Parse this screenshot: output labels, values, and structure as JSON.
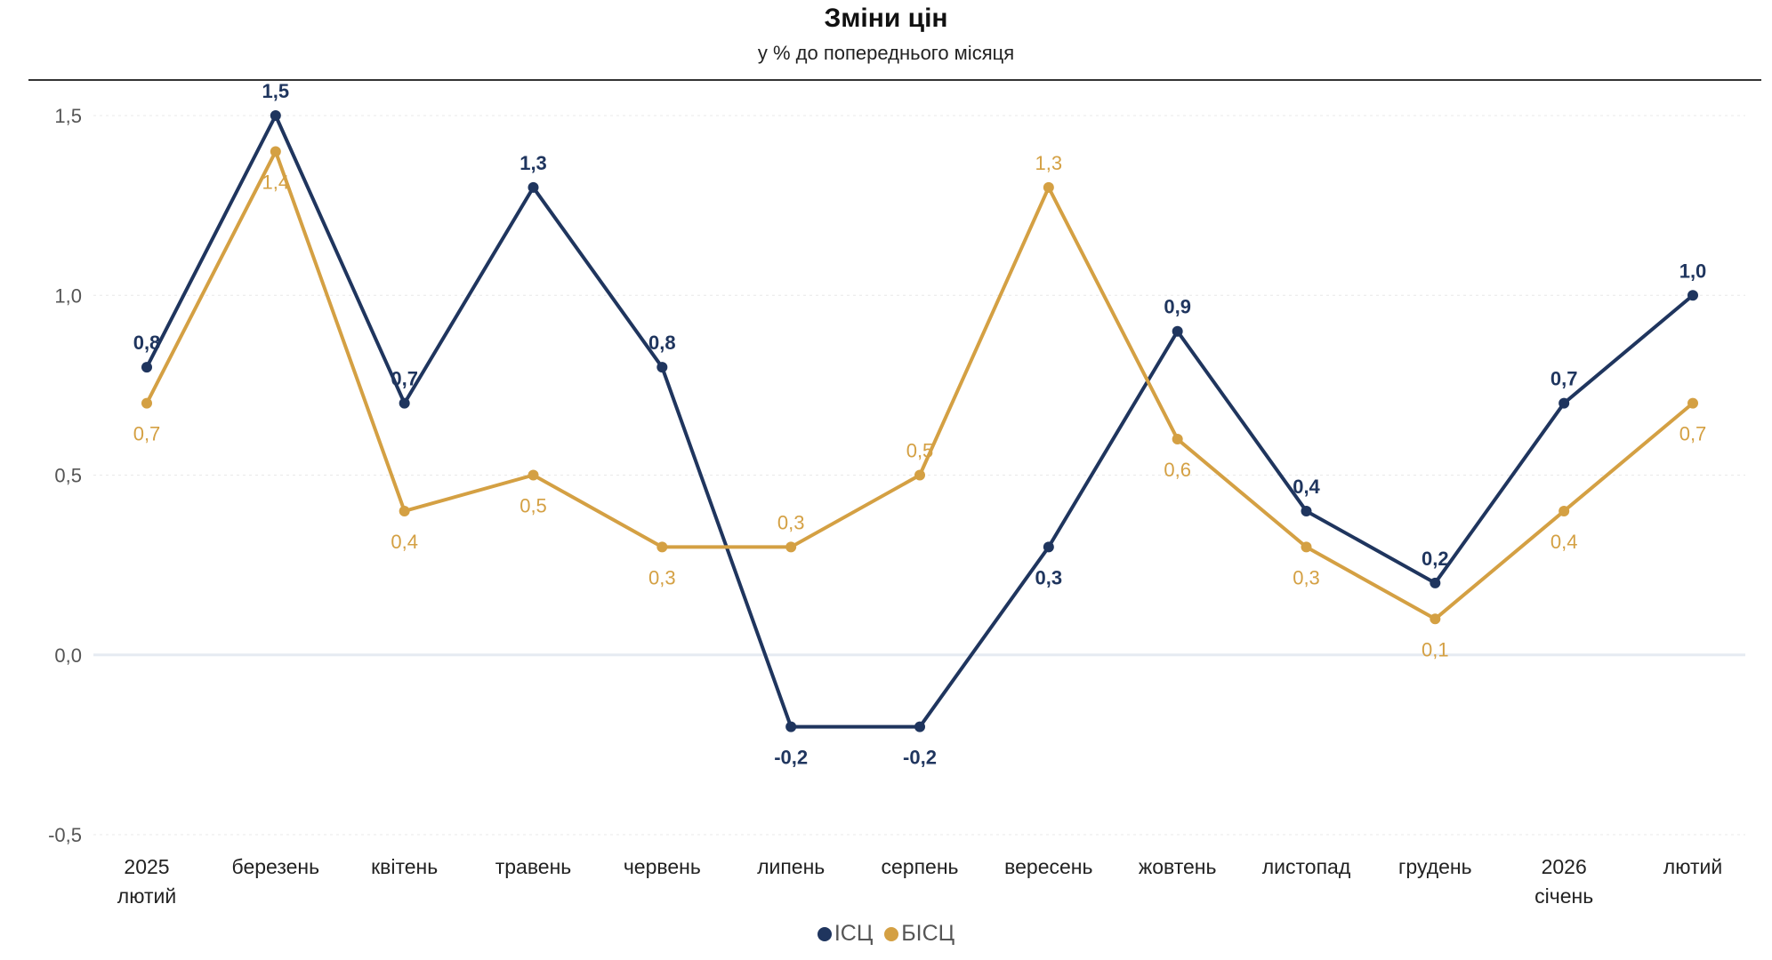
{
  "chart_data": {
    "type": "line",
    "title": "Зміни цін",
    "subtitle": "у % до попереднього місяця",
    "categories": [
      [
        "2025",
        "лютий"
      ],
      [
        "березень"
      ],
      [
        "квітень"
      ],
      [
        "травень"
      ],
      [
        "червень"
      ],
      [
        "липень"
      ],
      [
        "серпень"
      ],
      [
        "вересень"
      ],
      [
        "жовтень"
      ],
      [
        "листопад"
      ],
      [
        "грудень"
      ],
      [
        "2026",
        "січень"
      ],
      [
        "лютий"
      ]
    ],
    "ylim": [
      -0.5,
      1.5
    ],
    "yticks": [
      -0.5,
      0.0,
      0.5,
      1.0,
      1.5
    ],
    "ytick_labels": [
      "-0,5",
      "0,0",
      "0,5",
      "1,0",
      "1,5"
    ],
    "grid": true,
    "legend_position": "bottom",
    "series": [
      {
        "name": "ІСЦ",
        "color": "#1f355e",
        "values": [
          0.8,
          1.5,
          0.7,
          1.3,
          0.8,
          -0.2,
          -0.2,
          0.3,
          0.9,
          0.4,
          0.2,
          0.7,
          1.0
        ],
        "labels": [
          "0,8",
          "1,5",
          "0,7",
          "1,3",
          "0,8",
          "-0,2",
          "-0,2",
          "0,3",
          "0,9",
          "0,4",
          "0,2",
          "0,7",
          "1,0"
        ]
      },
      {
        "name": "БІСЦ",
        "color": "#d4a043",
        "values": [
          0.7,
          1.4,
          0.4,
          0.5,
          0.3,
          0.3,
          0.5,
          1.3,
          0.6,
          0.3,
          0.1,
          0.4,
          0.7
        ],
        "labels": [
          "0,7",
          "1,4",
          "0,4",
          "0,5",
          "0,3",
          "0,3",
          "0,5",
          "1,3",
          "0,6",
          "0,3",
          "0,1",
          "0,4",
          "0,7"
        ]
      }
    ]
  }
}
